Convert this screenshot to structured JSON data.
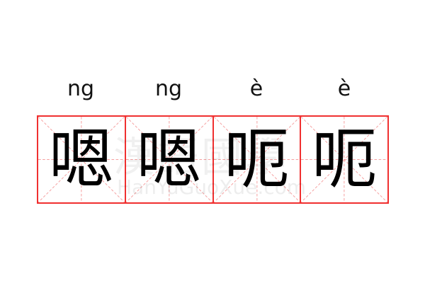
{
  "characters": [
    {
      "pinyin": "ng",
      "char": "嗯"
    },
    {
      "pinyin": "ng",
      "char": "嗯"
    },
    {
      "pinyin": "è",
      "char": "呃"
    },
    {
      "pinyin": "è",
      "char": "呃"
    }
  ],
  "watermark": {
    "chinese": "漢語國學",
    "latin": "HanYuGuoXue.com"
  },
  "colors": {
    "grid": "#f03030",
    "guide": "#f5a0a0",
    "text": "#000000"
  }
}
